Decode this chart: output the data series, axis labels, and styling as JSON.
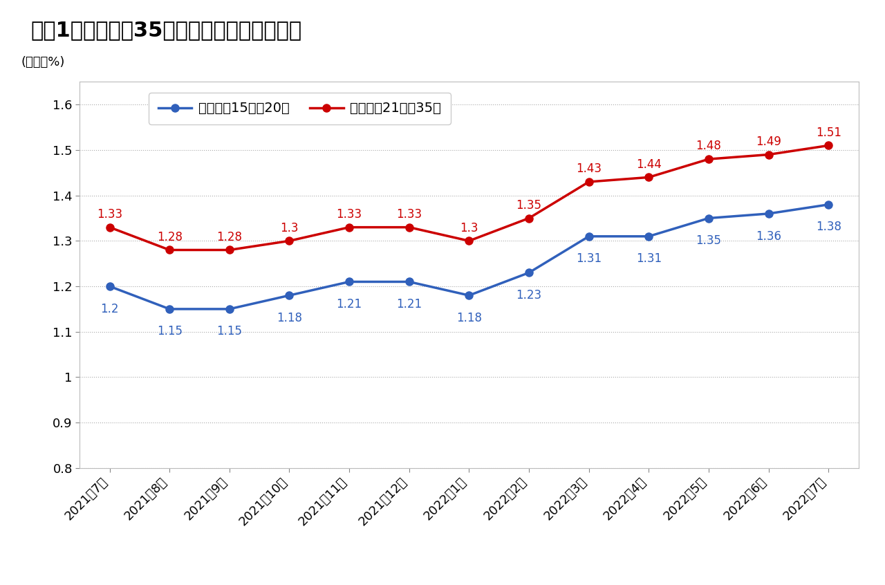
{
  "title": "図表1　フラット35の最低・最頻金利の推移",
  "unit_label": "(単位：%)",
  "x_labels": [
    "2021年7月",
    "2021年8月",
    "2021年9月",
    "2021年10月",
    "2021年11月",
    "2021年12月",
    "2022年1月",
    "2022年2月",
    "2022年3月",
    "2022年4月",
    "2022年5月",
    "2022年6月",
    "2022年7月"
  ],
  "blue_values": [
    1.2,
    1.15,
    1.15,
    1.18,
    1.21,
    1.21,
    1.18,
    1.23,
    1.31,
    1.31,
    1.35,
    1.36,
    1.38
  ],
  "red_values": [
    1.33,
    1.28,
    1.28,
    1.3,
    1.33,
    1.33,
    1.3,
    1.35,
    1.43,
    1.44,
    1.48,
    1.49,
    1.51
  ],
  "blue_label": "返済期間15年～20年",
  "red_label": "返済期間21年～35年",
  "blue_color": "#3060BB",
  "red_color": "#CC0000",
  "ylim": [
    0.8,
    1.65
  ],
  "yticks": [
    0.8,
    0.9,
    1.0,
    1.1,
    1.2,
    1.3,
    1.4,
    1.5,
    1.6
  ],
  "grid_color": "#AAAAAA",
  "background_color": "#FFFFFF",
  "title_fontsize": 22,
  "label_fontsize": 14,
  "tick_fontsize": 13,
  "annot_fontsize": 12,
  "legend_fontsize": 14
}
